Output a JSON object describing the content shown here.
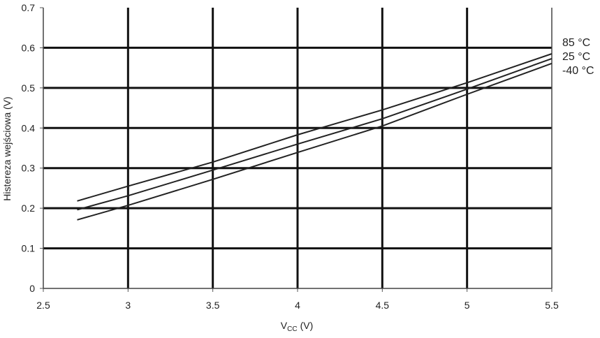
{
  "chart_data": {
    "type": "line",
    "title": "",
    "xlabel": "V",
    "xlabel_subscript": "CC",
    "xlabel_unit": "(V)",
    "ylabel": "Histereza wejściowa (V)",
    "xlim": [
      2.5,
      5.5
    ],
    "ylim": [
      0,
      0.7
    ],
    "x_ticks": [
      2.5,
      3,
      3.5,
      4,
      4.5,
      5,
      5.5
    ],
    "x_tick_labels": [
      "2.5",
      "3",
      "3.5",
      "4",
      "4.5",
      "5",
      "5.5"
    ],
    "y_ticks": [
      0,
      0.1,
      0.2,
      0.3,
      0.4,
      0.5,
      0.6,
      0.7
    ],
    "y_tick_labels": [
      "0",
      "0.1",
      "0.2",
      "0.3",
      "0.4",
      "0.5",
      "0.6",
      "0.7"
    ],
    "grid": true,
    "legend": "inline labels right of plot",
    "line_color": "#222222",
    "grid_color": "#111111",
    "series": [
      {
        "name": "85 °C",
        "x": [
          2.7,
          3.0,
          3.5,
          4.0,
          4.5,
          5.0,
          5.5
        ],
        "y": [
          0.218,
          0.255,
          0.315,
          0.383,
          0.445,
          0.513,
          0.585
        ]
      },
      {
        "name": "25 °C",
        "x": [
          2.7,
          3.0,
          3.5,
          4.0,
          4.5,
          5.0,
          5.5
        ],
        "y": [
          0.196,
          0.231,
          0.295,
          0.36,
          0.423,
          0.497,
          0.573
        ]
      },
      {
        "name": "-40 °C",
        "x": [
          2.7,
          3.0,
          3.5,
          4.0,
          4.5,
          5.0,
          5.5
        ],
        "y": [
          0.171,
          0.207,
          0.272,
          0.339,
          0.405,
          0.484,
          0.561
        ]
      }
    ]
  }
}
